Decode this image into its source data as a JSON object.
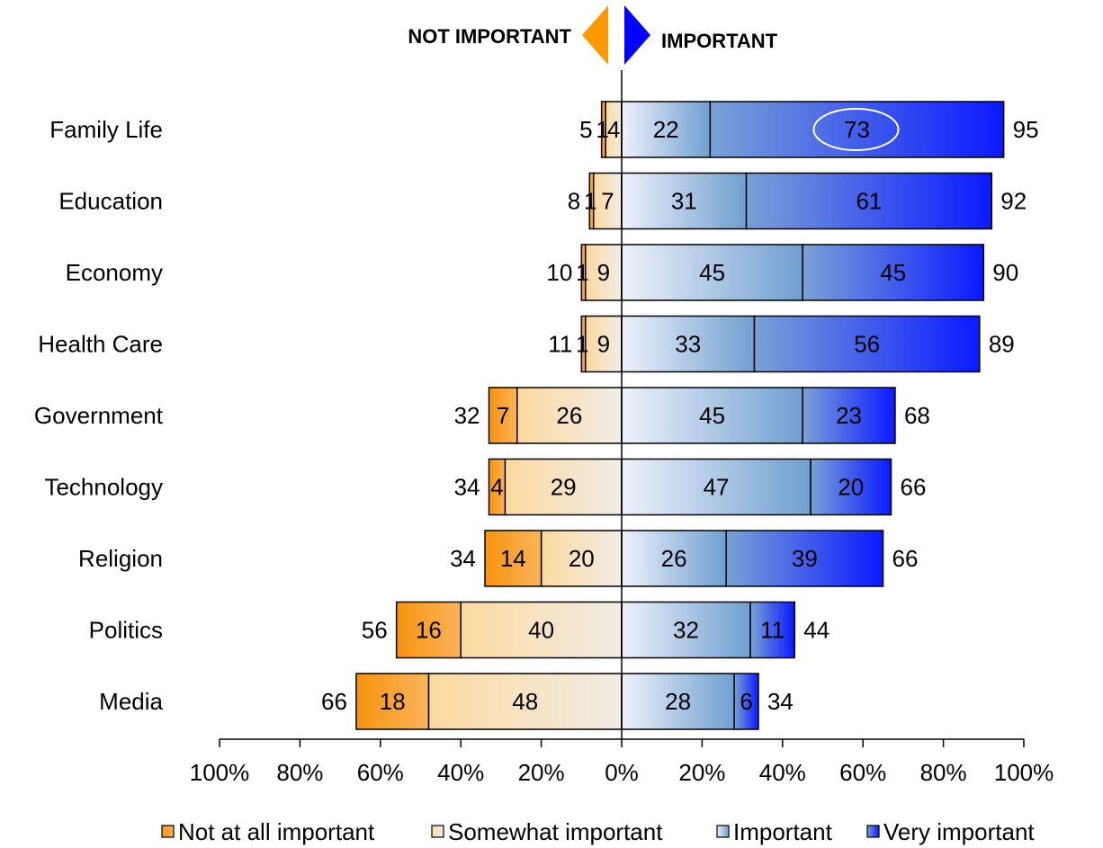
{
  "header": {
    "left_label": "NOT IMPORTANT",
    "right_label": "IMPORTANT"
  },
  "colors": {
    "not_at_all": "#f7930f",
    "somewhat": "#fdd9a0",
    "important_light": "#eef2fb",
    "important_mid": "#6f9fd0",
    "very_mid": "#7aa2d6",
    "very_dark": "#0a1aff",
    "orange_arrow": "#ff9900",
    "blue_arrow": "#0000ff",
    "highlight_oval": "#ffffff"
  },
  "chart_data": {
    "type": "bar",
    "orientation": "horizontal-diverging",
    "categories": [
      "Family Life",
      "Education",
      "Economy",
      "Health Care",
      "Government",
      "Technology",
      "Religion",
      "Politics",
      "Media"
    ],
    "series": [
      {
        "name": "Not at all important",
        "side": "left",
        "values": [
          1,
          1,
          1,
          1,
          7,
          4,
          14,
          16,
          18
        ]
      },
      {
        "name": "Somewhat important",
        "side": "left",
        "values": [
          4,
          7,
          9,
          9,
          26,
          29,
          20,
          40,
          48
        ]
      },
      {
        "name": "Important",
        "side": "right",
        "values": [
          22,
          31,
          45,
          33,
          45,
          47,
          26,
          32,
          28
        ]
      },
      {
        "name": "Very important",
        "side": "right",
        "values": [
          73,
          61,
          45,
          56,
          23,
          20,
          39,
          11,
          6
        ]
      }
    ],
    "not_important_totals": [
      5,
      8,
      10,
      11,
      32,
      34,
      34,
      56,
      66
    ],
    "important_totals": [
      95,
      92,
      90,
      89,
      68,
      66,
      66,
      44,
      34
    ],
    "segment_labels": {
      "not_at_all": [
        "",
        "",
        "",
        "",
        "7",
        "4",
        "14",
        "16",
        "18"
      ],
      "somewhat": [
        "4",
        "7",
        "9",
        "9",
        "26",
        "29",
        "20",
        "40",
        "48"
      ],
      "important": [
        "22",
        "31",
        "45",
        "33",
        "45",
        "47",
        "26",
        "32",
        "28"
      ],
      "very": [
        "73",
        "61",
        "45",
        "56",
        "23",
        "20",
        "39",
        "11",
        "6"
      ]
    },
    "thin_bar_labels": [
      "1",
      "1",
      "1",
      "1",
      "",
      "",
      "",
      "",
      ""
    ],
    "highlight": {
      "category": "Family Life",
      "series": "Very important"
    },
    "xlim": [
      -100,
      100
    ],
    "xticks": [
      "100%",
      "80%",
      "60%",
      "40%",
      "20%",
      "0%",
      "20%",
      "40%",
      "60%",
      "80%",
      "100%"
    ],
    "legend_position": "bottom",
    "grid": false
  }
}
